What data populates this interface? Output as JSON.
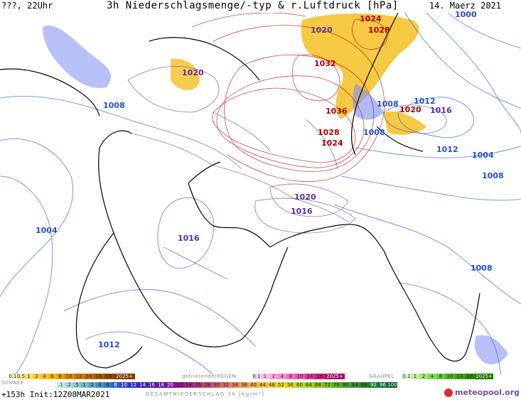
{
  "header": {
    "left": "???, 22Uhr",
    "center": "3h Niederschlagsmenge/-typ & r.Luftdruck [hPa]",
    "right": "14. Maerz 2021"
  },
  "pressure_labels": [
    {
      "text": "1024",
      "cls": "r"
    },
    {
      "text": "1028",
      "cls": "r"
    },
    {
      "text": "1020",
      "cls": "p"
    },
    {
      "text": "1000",
      "cls": "b"
    },
    {
      "text": "1032",
      "cls": "r"
    },
    {
      "text": "1020",
      "cls": "p"
    },
    {
      "text": "1008",
      "cls": "b"
    },
    {
      "text": "1012",
      "cls": "b"
    },
    {
      "text": "1008",
      "cls": "b"
    },
    {
      "text": "1020",
      "cls": "r"
    },
    {
      "text": "1016",
      "cls": "p"
    },
    {
      "text": "1036",
      "cls": "r"
    },
    {
      "text": "1008",
      "cls": "b"
    },
    {
      "text": "1028",
      "cls": "r"
    },
    {
      "text": "1024",
      "cls": "r"
    },
    {
      "text": "1012",
      "cls": "b"
    },
    {
      "text": "1004",
      "cls": "b"
    },
    {
      "text": "1008",
      "cls": "b"
    },
    {
      "text": "1020",
      "cls": "p"
    },
    {
      "text": "1016",
      "cls": "p"
    },
    {
      "text": "1004",
      "cls": "b"
    },
    {
      "text": "1016",
      "cls": "p"
    },
    {
      "text": "1008",
      "cls": "b"
    },
    {
      "text": "1012",
      "cls": "b"
    }
  ],
  "legend": {
    "schnee_label": "SCHNEE",
    "regen_label": "gefrierenderREGEN",
    "graupel_label": "GRAUPEL",
    "gesamt_label": "GESAMTNIEDERSCHLAG 3h [kg/m²]",
    "snow_scale": [
      "0.1",
      "0.5",
      "1",
      "2",
      "4",
      "6",
      "8",
      "10",
      "12",
      "14",
      "16",
      "18",
      "2025+"
    ],
    "regen_scale": [
      "0.1",
      "1",
      "2",
      "4",
      "8",
      "10",
      "14",
      "16",
      "2025+"
    ],
    "graupel_scale": [
      "0.1",
      "1",
      "2",
      "4",
      "8",
      "10",
      "14",
      "16",
      "2025+"
    ],
    "total_scale": [
      ".1",
      ".2",
      ".5",
      "1",
      "2",
      "4",
      "6",
      "8",
      "10",
      "12",
      "14",
      "16",
      "18",
      "20",
      "22",
      "24",
      "26",
      "28",
      "30",
      "32",
      "34",
      "36",
      "40",
      "44",
      "48",
      "52",
      "56",
      "60",
      "64",
      "68",
      "72",
      "76",
      "80",
      "84",
      "88",
      "92",
      "96",
      "100"
    ]
  },
  "footer": {
    "run": "+153h Init:12Z08MAR2021",
    "logo": "meteopool.org"
  },
  "colors": {
    "isobar_high": "#b00000",
    "isobar_low": "#1f4fd8",
    "isobar_mid": "#6a3fb0",
    "coast": "#000000",
    "snow": "#f2b705",
    "rain": "#7b8df0"
  }
}
